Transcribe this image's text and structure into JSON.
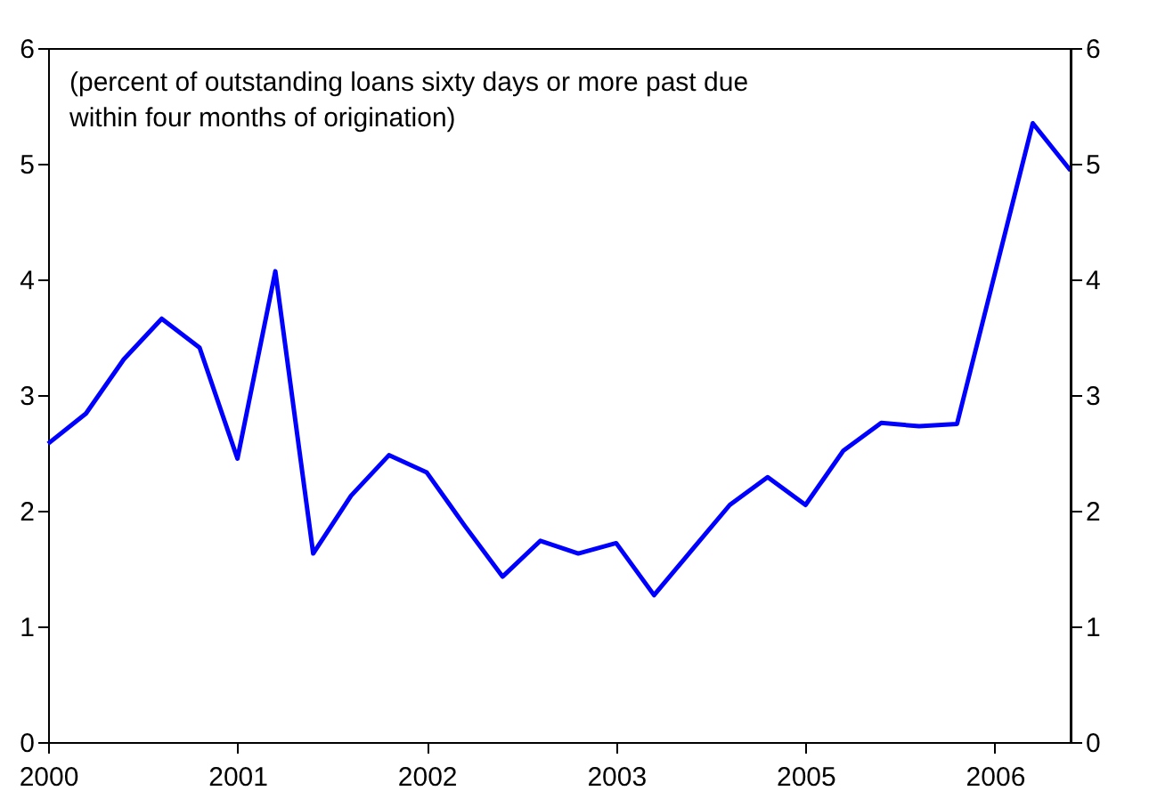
{
  "chart_data": {
    "type": "line",
    "categories": [
      "2000",
      null,
      null,
      null,
      null,
      "2001",
      null,
      null,
      null,
      null,
      "2002",
      null,
      null,
      null,
      null,
      "2003",
      null,
      null,
      null,
      null,
      "2005",
      null,
      null,
      null,
      null,
      "2006",
      null,
      null
    ],
    "series": [
      {
        "color": "#0000ff",
        "values": [
          2.58,
          2.84,
          3.31,
          3.66,
          3.41,
          2.45,
          4.07,
          1.63,
          2.13,
          2.48,
          2.33,
          1.87,
          1.43,
          1.74,
          1.63,
          1.72,
          1.27,
          1.66,
          2.05,
          2.29,
          2.05,
          2.52,
          2.76,
          2.73,
          2.75,
          4.05,
          5.35,
          4.94
        ]
      }
    ],
    "ylim": [
      0,
      6
    ],
    "yticks": [
      0,
      1,
      2,
      3,
      4,
      5,
      6
    ],
    "y2lim": [
      0,
      6
    ],
    "y2ticks": [
      0,
      1,
      2,
      3,
      4,
      5,
      6
    ],
    "annotations": [
      "(percent of outstanding loans sixty days or more past due\nwithin four months of origination)"
    ],
    "grid": false,
    "marker": "none",
    "line_style": "solid"
  }
}
